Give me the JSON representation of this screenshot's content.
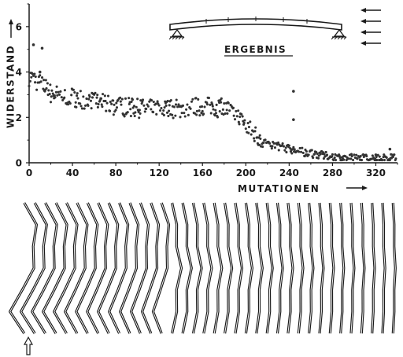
{
  "chart_data": {
    "type": "scatter",
    "title": "ERGEBNIS",
    "xlabel": "MUTATIONEN",
    "ylabel": "WIDERSTAND",
    "xlim": [
      0,
      340
    ],
    "ylim": [
      0,
      7
    ],
    "xticks": [
      "0",
      "40",
      "80",
      "120",
      "160",
      "200",
      "240",
      "280",
      "320"
    ],
    "xtick_values": [
      0,
      40,
      80,
      120,
      160,
      200,
      240,
      280,
      320
    ],
    "yticks": [
      "0",
      "2",
      "4",
      "6"
    ],
    "ytick_values": [
      0,
      2,
      4,
      6
    ],
    "grid": false,
    "legend": "none",
    "marker_color": "#333333",
    "outliers": [
      {
        "x": 4,
        "y": 5.2
      },
      {
        "x": 12,
        "y": 5.05
      },
      {
        "x": 10,
        "y": 4.0
      },
      {
        "x": 244,
        "y": 3.15
      },
      {
        "x": 244,
        "y": 1.9
      },
      {
        "x": 320,
        "y": 0.35
      },
      {
        "x": 333,
        "y": 0.6
      }
    ],
    "trend": [
      {
        "x": 0,
        "y": 3.8
      },
      {
        "x": 10,
        "y": 3.5
      },
      {
        "x": 20,
        "y": 3.05
      },
      {
        "x": 40,
        "y": 2.9
      },
      {
        "x": 60,
        "y": 2.7
      },
      {
        "x": 80,
        "y": 2.5
      },
      {
        "x": 100,
        "y": 2.4
      },
      {
        "x": 120,
        "y": 2.35
      },
      {
        "x": 140,
        "y": 2.4
      },
      {
        "x": 160,
        "y": 2.5
      },
      {
        "x": 180,
        "y": 2.4
      },
      {
        "x": 190,
        "y": 2.2
      },
      {
        "x": 200,
        "y": 1.6
      },
      {
        "x": 210,
        "y": 1.2
      },
      {
        "x": 220,
        "y": 0.85
      },
      {
        "x": 240,
        "y": 0.6
      },
      {
        "x": 260,
        "y": 0.4
      },
      {
        "x": 280,
        "y": 0.25
      },
      {
        "x": 300,
        "y": 0.2
      },
      {
        "x": 320,
        "y": 0.2
      },
      {
        "x": 338,
        "y": 0.2
      }
    ]
  },
  "illustrations": {
    "beam_icon": "beam-on-supports",
    "flow_arrows_icon": "airflow-arrows",
    "plate_shapes_icon": "evolving-plate-profiles",
    "start_marker_icon": "start-arrow"
  }
}
